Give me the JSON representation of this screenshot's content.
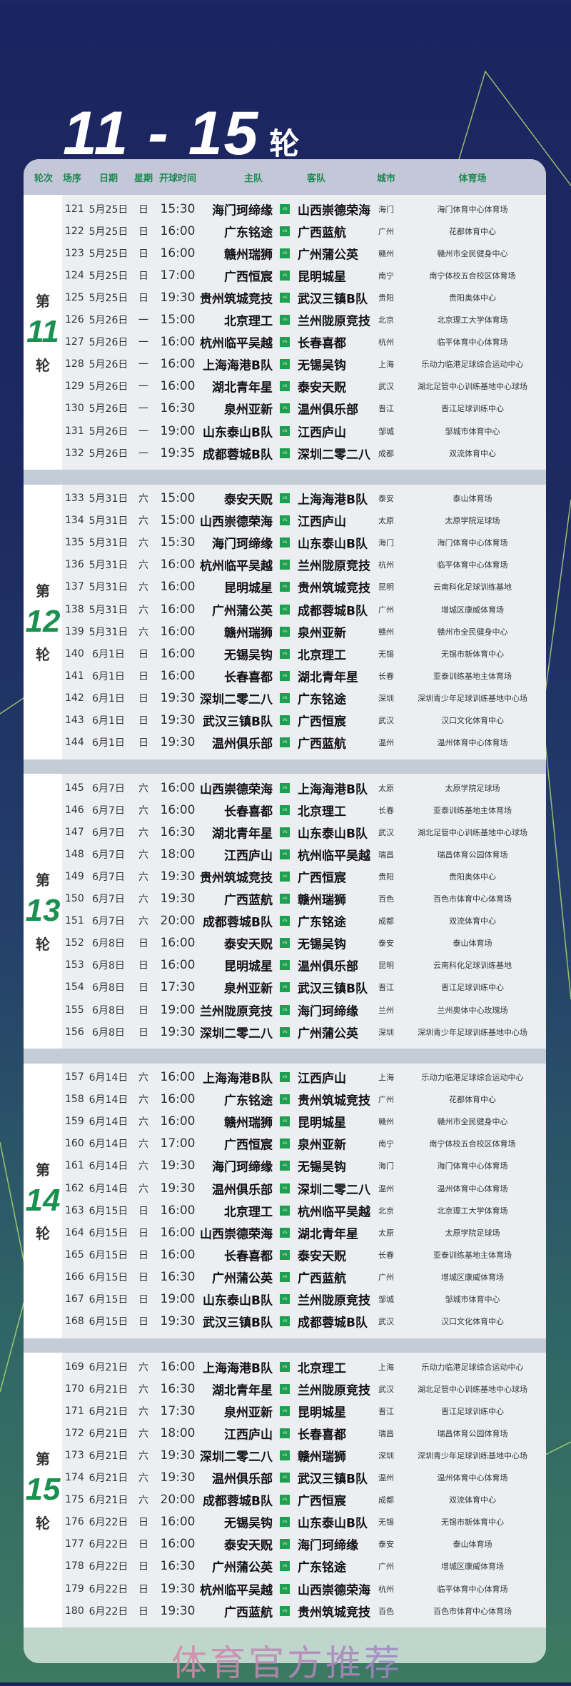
{
  "title": {
    "range": "11 - 15",
    "unit": "轮"
  },
  "colors": {
    "accent": "#1a9150",
    "vs_badge": "#1e9e4e",
    "header_text": "#1e8a50"
  },
  "columns": [
    "轮次",
    "场序",
    "日期",
    "星期",
    "开球时间",
    "主队",
    "客队",
    "城市",
    "体育场"
  ],
  "vs_label": "vs",
  "rounds": [
    {
      "prefix": "第",
      "number": "11",
      "suffix": "轮",
      "matches": [
        [
          "121",
          "5月25日",
          "日",
          "15:30",
          "海门珂缔缘",
          "山西崇德荣海",
          "海门",
          "海门体育中心体育场"
        ],
        [
          "122",
          "5月25日",
          "日",
          "16:00",
          "广东铭途",
          "广西蓝航",
          "广州",
          "花都体育中心"
        ],
        [
          "123",
          "5月25日",
          "日",
          "16:00",
          "赣州瑞狮",
          "广州蒲公英",
          "赣州",
          "赣州市全民健身中心"
        ],
        [
          "124",
          "5月25日",
          "日",
          "17:00",
          "广西恒宸",
          "昆明城星",
          "南宁",
          "南宁体校五合校区体育场"
        ],
        [
          "125",
          "5月25日",
          "日",
          "19:30",
          "贵州筑城竞技",
          "武汉三镇B队",
          "贵阳",
          "贵阳奥体中心"
        ],
        [
          "126",
          "5月26日",
          "一",
          "15:00",
          "北京理工",
          "兰州陇原竞技",
          "北京",
          "北京理工大学体育场"
        ],
        [
          "127",
          "5月26日",
          "一",
          "16:00",
          "杭州临平吴越",
          "长春喜都",
          "杭州",
          "临平体育中心体育场"
        ],
        [
          "128",
          "5月26日",
          "一",
          "16:00",
          "上海海港B队",
          "无锡吴钩",
          "上海",
          "乐动力临港足球综合运动中心"
        ],
        [
          "129",
          "5月26日",
          "一",
          "16:00",
          "湖北青年星",
          "泰安天贶",
          "武汉",
          "湖北足管中心训练基地中心球场"
        ],
        [
          "130",
          "5月26日",
          "一",
          "16:30",
          "泉州亚新",
          "温州俱乐部",
          "晋江",
          "晋江足球训练中心"
        ],
        [
          "131",
          "5月26日",
          "一",
          "19:00",
          "山东泰山B队",
          "江西庐山",
          "邹城",
          "邹城市体育中心"
        ],
        [
          "132",
          "5月26日",
          "一",
          "19:35",
          "成都蓉城B队",
          "深圳二零二八",
          "成都",
          "双流体育中心"
        ]
      ]
    },
    {
      "prefix": "第",
      "number": "12",
      "suffix": "轮",
      "matches": [
        [
          "133",
          "5月31日",
          "六",
          "15:00",
          "泰安天贶",
          "上海海港B队",
          "泰安",
          "泰山体育场"
        ],
        [
          "134",
          "5月31日",
          "六",
          "15:00",
          "山西崇德荣海",
          "江西庐山",
          "太原",
          "太原学院足球场"
        ],
        [
          "135",
          "5月31日",
          "六",
          "15:30",
          "海门珂缔缘",
          "山东泰山B队",
          "海门",
          "海门体育中心体育场"
        ],
        [
          "136",
          "5月31日",
          "六",
          "16:00",
          "杭州临平吴越",
          "兰州陇原竞技",
          "杭州",
          "临平体育中心体育场"
        ],
        [
          "137",
          "5月31日",
          "六",
          "16:00",
          "昆明城星",
          "贵州筑城竞技",
          "昆明",
          "云南科化足球训练基地"
        ],
        [
          "138",
          "5月31日",
          "六",
          "16:00",
          "广州蒲公英",
          "成都蓉城B队",
          "广州",
          "增城区康威体育场"
        ],
        [
          "139",
          "5月31日",
          "六",
          "16:00",
          "赣州瑞狮",
          "泉州亚新",
          "赣州",
          "赣州市全民健身中心"
        ],
        [
          "140",
          "6月1日",
          "日",
          "16:00",
          "无锡吴钩",
          "北京理工",
          "无锡",
          "无锡市新体育中心"
        ],
        [
          "141",
          "6月1日",
          "日",
          "16:00",
          "长春喜都",
          "湖北青年星",
          "长春",
          "亚泰训练基地主体育场"
        ],
        [
          "142",
          "6月1日",
          "日",
          "19:30",
          "深圳二零二八",
          "广东铭途",
          "深圳",
          "深圳青少年足球训练基地中心场"
        ],
        [
          "143",
          "6月1日",
          "日",
          "19:30",
          "武汉三镇B队",
          "广西恒宸",
          "武汉",
          "汉口文化体育中心"
        ],
        [
          "144",
          "6月1日",
          "日",
          "19:30",
          "温州俱乐部",
          "广西蓝航",
          "温州",
          "温州体育中心体育场"
        ]
      ]
    },
    {
      "prefix": "第",
      "number": "13",
      "suffix": "轮",
      "matches": [
        [
          "145",
          "6月7日",
          "六",
          "16:00",
          "山西崇德荣海",
          "上海海港B队",
          "太原",
          "太原学院足球场"
        ],
        [
          "146",
          "6月7日",
          "六",
          "16:00",
          "长春喜都",
          "北京理工",
          "长春",
          "亚泰训练基地主体育场"
        ],
        [
          "147",
          "6月7日",
          "六",
          "16:30",
          "湖北青年星",
          "山东泰山B队",
          "武汉",
          "湖北足管中心训练基地中心球场"
        ],
        [
          "148",
          "6月7日",
          "六",
          "18:00",
          "江西庐山",
          "杭州临平吴越",
          "瑞昌",
          "瑞昌体育公园体育场"
        ],
        [
          "149",
          "6月7日",
          "六",
          "19:30",
          "贵州筑城竞技",
          "广西恒宸",
          "贵阳",
          "贵阳奥体中心"
        ],
        [
          "150",
          "6月7日",
          "六",
          "19:30",
          "广西蓝航",
          "赣州瑞狮",
          "百色",
          "百色市体育中心体育场"
        ],
        [
          "151",
          "6月7日",
          "六",
          "20:00",
          "成都蓉城B队",
          "广东铭途",
          "成都",
          "双流体育中心"
        ],
        [
          "152",
          "6月8日",
          "日",
          "16:00",
          "泰安天贶",
          "无锡吴钩",
          "泰安",
          "泰山体育场"
        ],
        [
          "153",
          "6月8日",
          "日",
          "16:00",
          "昆明城星",
          "温州俱乐部",
          "昆明",
          "云南科化足球训练基地"
        ],
        [
          "154",
          "6月8日",
          "日",
          "17:30",
          "泉州亚新",
          "武汉三镇B队",
          "晋江",
          "晋江足球训练中心"
        ],
        [
          "155",
          "6月8日",
          "日",
          "19:00",
          "兰州陇原竞技",
          "海门珂缔缘",
          "兰州",
          "兰州奥体中心玫瑰场"
        ],
        [
          "156",
          "6月8日",
          "日",
          "19:30",
          "深圳二零二八",
          "广州蒲公英",
          "深圳",
          "深圳青少年足球训练基地中心场"
        ]
      ]
    },
    {
      "prefix": "第",
      "number": "14",
      "suffix": "轮",
      "matches": [
        [
          "157",
          "6月14日",
          "六",
          "16:00",
          "上海海港B队",
          "江西庐山",
          "上海",
          "乐动力临港足球综合运动中心"
        ],
        [
          "158",
          "6月14日",
          "六",
          "16:00",
          "广东铭途",
          "贵州筑城竞技",
          "广州",
          "花都体育中心"
        ],
        [
          "159",
          "6月14日",
          "六",
          "16:00",
          "赣州瑞狮",
          "昆明城星",
          "赣州",
          "赣州市全民健身中心"
        ],
        [
          "160",
          "6月14日",
          "六",
          "17:00",
          "广西恒宸",
          "泉州亚新",
          "南宁",
          "南宁体校五合校区体育场"
        ],
        [
          "161",
          "6月14日",
          "六",
          "19:30",
          "海门珂缔缘",
          "无锡吴钩",
          "海门",
          "海门体育中心体育场"
        ],
        [
          "162",
          "6月14日",
          "六",
          "19:30",
          "温州俱乐部",
          "深圳二零二八",
          "温州",
          "温州体育中心体育场"
        ],
        [
          "163",
          "6月15日",
          "日",
          "16:00",
          "北京理工",
          "杭州临平吴越",
          "北京",
          "北京理工大学体育场"
        ],
        [
          "164",
          "6月15日",
          "日",
          "16:00",
          "山西崇德荣海",
          "湖北青年星",
          "太原",
          "太原学院足球场"
        ],
        [
          "165",
          "6月15日",
          "日",
          "16:00",
          "长春喜都",
          "泰安天贶",
          "长春",
          "亚泰训练基地主体育场"
        ],
        [
          "166",
          "6月15日",
          "日",
          "16:30",
          "广州蒲公英",
          "广西蓝航",
          "广州",
          "增城区康威体育场"
        ],
        [
          "167",
          "6月15日",
          "日",
          "19:00",
          "山东泰山B队",
          "兰州陇原竞技",
          "邹城",
          "邹城市体育中心"
        ],
        [
          "168",
          "6月15日",
          "日",
          "19:30",
          "武汉三镇B队",
          "成都蓉城B队",
          "武汉",
          "汉口文化体育中心"
        ]
      ]
    },
    {
      "prefix": "第",
      "number": "15",
      "suffix": "轮",
      "matches": [
        [
          "169",
          "6月21日",
          "六",
          "16:00",
          "上海海港B队",
          "北京理工",
          "上海",
          "乐动力临港足球综合运动中心"
        ],
        [
          "170",
          "6月21日",
          "六",
          "16:30",
          "湖北青年星",
          "兰州陇原竞技",
          "武汉",
          "湖北足管中心训练基地中心球场"
        ],
        [
          "171",
          "6月21日",
          "六",
          "17:30",
          "泉州亚新",
          "昆明城星",
          "晋江",
          "晋江足球训练中心"
        ],
        [
          "172",
          "6月21日",
          "六",
          "18:00",
          "江西庐山",
          "长春喜都",
          "瑞昌",
          "瑞昌体育公园体育场"
        ],
        [
          "173",
          "6月21日",
          "六",
          "19:30",
          "深圳二零二八",
          "赣州瑞狮",
          "深圳",
          "深圳青少年足球训练基地中心场"
        ],
        [
          "174",
          "6月21日",
          "六",
          "19:30",
          "温州俱乐部",
          "武汉三镇B队",
          "温州",
          "温州体育中心体育场"
        ],
        [
          "175",
          "6月21日",
          "六",
          "20:00",
          "成都蓉城B队",
          "广西恒宸",
          "成都",
          "双流体育中心"
        ],
        [
          "176",
          "6月22日",
          "日",
          "16:00",
          "无锡吴钩",
          "山东泰山B队",
          "无锡",
          "无锡市新体育中心"
        ],
        [
          "177",
          "6月22日",
          "日",
          "16:00",
          "泰安天贶",
          "海门珂缔缘",
          "泰安",
          "泰山体育场"
        ],
        [
          "178",
          "6月22日",
          "日",
          "16:30",
          "广州蒲公英",
          "广东铭途",
          "广州",
          "增城区康威体育场"
        ],
        [
          "179",
          "6月22日",
          "日",
          "19:30",
          "杭州临平吴越",
          "山西崇德荣海",
          "杭州",
          "临平体育中心体育场"
        ],
        [
          "180",
          "6月22日",
          "日",
          "19:30",
          "广西蓝航",
          "贵州筑城竞技",
          "百色",
          "百色市体育中心体育场"
        ]
      ]
    }
  ],
  "watermark": "体育官方推荐"
}
